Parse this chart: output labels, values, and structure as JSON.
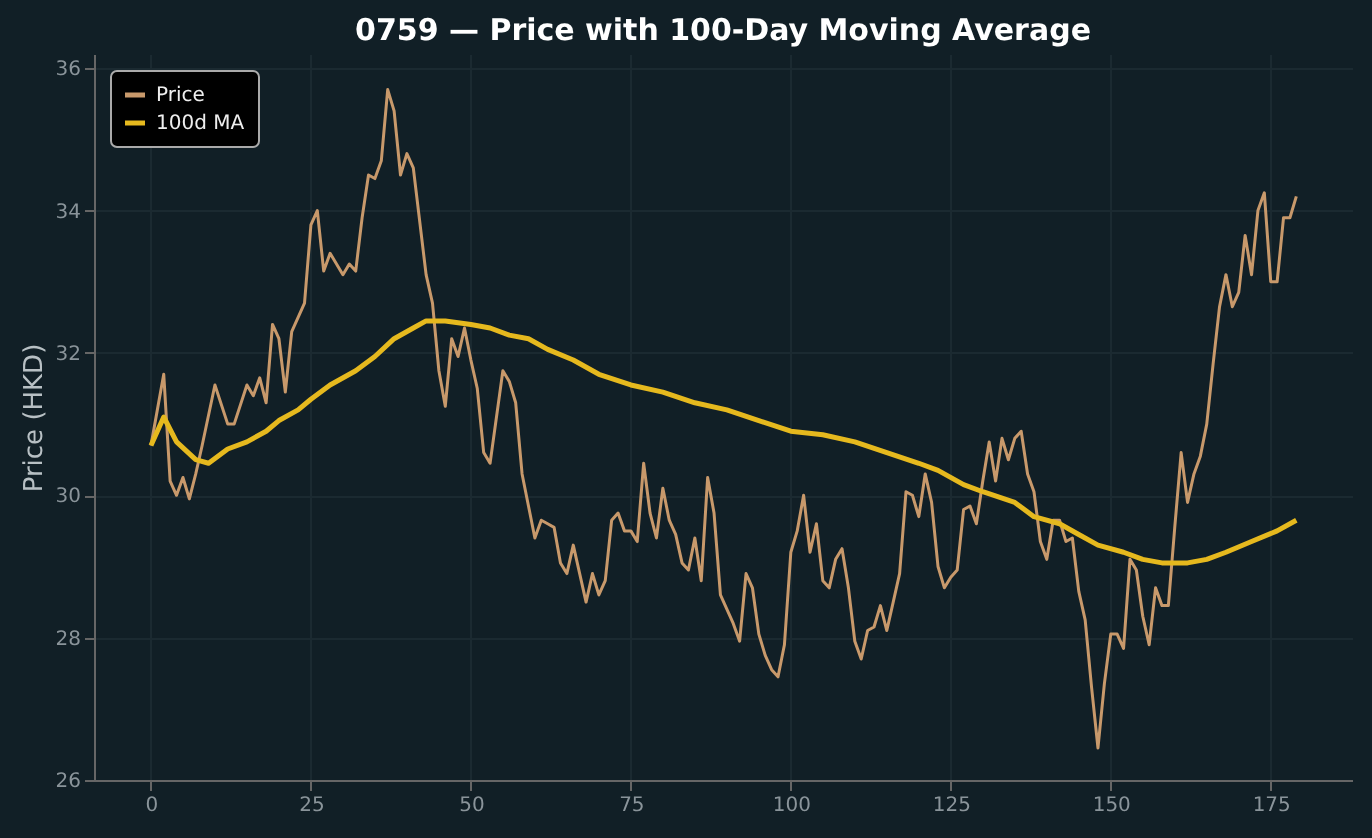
{
  "chart_data": {
    "type": "line",
    "title": "0759 — Price with 100-Day Moving Average",
    "ylabel": "Price (HKD)",
    "xlim": [
      -8.9,
      187.7
    ],
    "xticks": [
      0,
      25,
      50,
      75,
      100,
      125,
      150,
      175
    ],
    "ylim": [
      26,
      36.2
    ],
    "yticks": [
      26,
      28,
      30,
      32,
      34,
      36
    ],
    "grid": true,
    "legend": "top left",
    "line_style": "solid",
    "marker": "none",
    "series": [
      {
        "name": "Price",
        "color": "#c8996b",
        "x": [
          0,
          1,
          2,
          3,
          4,
          5,
          6,
          7,
          8,
          10,
          12,
          13,
          15,
          16,
          17,
          18,
          19,
          20,
          21,
          22,
          24,
          25,
          26,
          27,
          28,
          30,
          31,
          32,
          33,
          34,
          35,
          36,
          37,
          38,
          39,
          40,
          41,
          43,
          44,
          45,
          46,
          47,
          48,
          49,
          50,
          51,
          52,
          53,
          55,
          56,
          57,
          58,
          59,
          60,
          61,
          62,
          63,
          64,
          65,
          66,
          67,
          68,
          69,
          70,
          71,
          72,
          73,
          74,
          75,
          76,
          77,
          78,
          79,
          80,
          81,
          82,
          83,
          84,
          85,
          86,
          87,
          88,
          89,
          90,
          91,
          92,
          93,
          94,
          95,
          96,
          97,
          98,
          99,
          100,
          101,
          102,
          103,
          104,
          105,
          106,
          107,
          108,
          109,
          110,
          111,
          112,
          113,
          114,
          115,
          116,
          117,
          118,
          119,
          120,
          121,
          122,
          123,
          124,
          125,
          126,
          127,
          128,
          129,
          130,
          131,
          132,
          133,
          134,
          135,
          136,
          137,
          138,
          139,
          140,
          141,
          142,
          143,
          144,
          145,
          146,
          147,
          148,
          149,
          150,
          151,
          152,
          153,
          154,
          155,
          156,
          157,
          158,
          159,
          160,
          161,
          162,
          163,
          164,
          165,
          166,
          167,
          168,
          169,
          170,
          171,
          172,
          173,
          174,
          175,
          176,
          177,
          178,
          179
        ],
        "values": [
          30.7,
          31.2,
          31.7,
          30.2,
          30.0,
          30.25,
          29.95,
          30.3,
          30.7,
          31.55,
          31.0,
          31.0,
          31.55,
          31.4,
          31.65,
          31.3,
          32.4,
          32.2,
          31.45,
          32.3,
          32.7,
          33.8,
          34.0,
          33.15,
          33.4,
          33.1,
          33.25,
          33.15,
          33.9,
          34.5,
          34.45,
          34.7,
          35.7,
          35.4,
          34.5,
          34.8,
          34.6,
          33.1,
          32.7,
          31.75,
          31.25,
          32.2,
          31.95,
          32.35,
          31.9,
          31.5,
          30.6,
          30.45,
          31.75,
          31.6,
          31.3,
          30.3,
          29.85,
          29.4,
          29.65,
          29.6,
          29.55,
          29.05,
          28.9,
          29.3,
          28.9,
          28.5,
          28.9,
          28.6,
          28.8,
          29.65,
          29.75,
          29.5,
          29.5,
          29.35,
          30.45,
          29.75,
          29.4,
          30.1,
          29.65,
          29.45,
          29.05,
          28.95,
          29.4,
          28.8,
          30.25,
          29.75,
          28.6,
          28.4,
          28.2,
          27.95,
          28.9,
          28.7,
          28.05,
          27.75,
          27.55,
          27.45,
          27.9,
          29.2,
          29.5,
          30.0,
          29.2,
          29.6,
          28.8,
          28.7,
          29.1,
          29.25,
          28.7,
          27.95,
          27.7,
          28.1,
          28.15,
          28.45,
          28.1,
          28.5,
          28.9,
          30.05,
          30.0,
          29.7,
          30.3,
          29.9,
          29.0,
          28.7,
          28.85,
          28.95,
          29.8,
          29.85,
          29.6,
          30.2,
          30.75,
          30.2,
          30.8,
          30.5,
          30.8,
          30.9,
          30.3,
          30.05,
          29.35,
          29.1,
          29.65,
          29.65,
          29.35,
          29.4,
          28.65,
          28.25,
          27.3,
          26.45,
          27.35,
          28.05,
          28.05,
          27.85,
          29.1,
          28.95,
          28.3,
          27.9,
          28.7,
          28.45,
          28.45,
          29.55,
          30.6,
          29.9,
          30.3,
          30.55,
          31.0,
          31.85,
          32.65,
          33.1,
          32.65,
          32.85,
          33.65,
          33.1,
          34.0,
          34.25,
          33.0,
          33.0,
          33.9,
          33.9,
          34.2
        ]
      },
      {
        "name": "100d MA",
        "color": "#e6b91e",
        "x": [
          0,
          2,
          4,
          7,
          9,
          12,
          15,
          18,
          20,
          23,
          25,
          28,
          32,
          35,
          38,
          41,
          43,
          46,
          50,
          53,
          56,
          59,
          62,
          66,
          70,
          75,
          80,
          85,
          90,
          95,
          100,
          105,
          110,
          115,
          120,
          123,
          127,
          130,
          135,
          138,
          142,
          145,
          148,
          152,
          155,
          158,
          162,
          165,
          168,
          172,
          176,
          179
        ],
        "values": [
          30.7,
          31.1,
          30.75,
          30.5,
          30.45,
          30.65,
          30.75,
          30.9,
          31.05,
          31.2,
          31.35,
          31.55,
          31.75,
          31.95,
          32.2,
          32.35,
          32.45,
          32.45,
          32.4,
          32.35,
          32.25,
          32.2,
          32.05,
          31.9,
          31.7,
          31.55,
          31.45,
          31.3,
          31.2,
          31.05,
          30.9,
          30.85,
          30.75,
          30.6,
          30.45,
          30.35,
          30.15,
          30.05,
          29.9,
          29.7,
          29.6,
          29.45,
          29.3,
          29.2,
          29.1,
          29.05,
          29.05,
          29.1,
          29.2,
          29.35,
          29.5,
          29.65
        ]
      }
    ]
  }
}
